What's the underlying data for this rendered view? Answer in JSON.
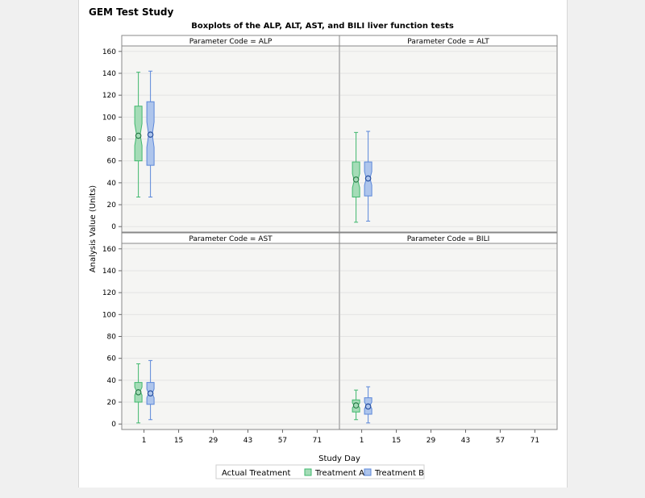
{
  "study_title": "GEM Test Study",
  "chart_data": {
    "type": "boxplot",
    "title": "Boxplots of the ALP, ALT, AST, and BILI liver function tests",
    "xlabel": "Study Day",
    "ylabel": "Analysis Value (Units)",
    "xticks": [
      1,
      15,
      29,
      43,
      57,
      71
    ],
    "xlim": [
      -8,
      80
    ],
    "yticks": [
      0,
      20,
      40,
      60,
      80,
      100,
      120,
      140,
      160
    ],
    "ylim": [
      -5,
      165
    ],
    "legend": {
      "title": "Actual Treatment",
      "position": "bottom",
      "entries": [
        "Treatment A",
        "Treatment B"
      ]
    },
    "colors": {
      "Treatment A": "#3fb76d",
      "Treatment B": "#5b87d9",
      "boxA": "#a5dcb7",
      "boxB": "#aec5ec"
    },
    "panels": [
      {
        "label": "Parameter Code = ALP",
        "boxes": [
          {
            "group": "Treatment A",
            "day": 1,
            "min": 27,
            "q1": 60,
            "median": 84,
            "q3": 110,
            "max": 141,
            "mean": 83
          },
          {
            "group": "Treatment B",
            "day": 1,
            "min": 27,
            "q1": 56,
            "median": 84,
            "q3": 114,
            "max": 142,
            "mean": 84
          }
        ]
      },
      {
        "label": "Parameter Code = ALT",
        "boxes": [
          {
            "group": "Treatment A",
            "day": 1,
            "min": 4,
            "q1": 27,
            "median": 42,
            "q3": 59,
            "max": 86,
            "mean": 43
          },
          {
            "group": "Treatment B",
            "day": 1,
            "min": 5,
            "q1": 28,
            "median": 44,
            "q3": 59,
            "max": 87,
            "mean": 44
          }
        ]
      },
      {
        "label": "Parameter Code = AST",
        "boxes": [
          {
            "group": "Treatment A",
            "day": 1,
            "min": 1,
            "q1": 20,
            "median": 30,
            "q3": 38,
            "max": 55,
            "mean": 29
          },
          {
            "group": "Treatment B",
            "day": 1,
            "min": 4,
            "q1": 18,
            "median": 28,
            "q3": 38,
            "max": 58,
            "mean": 28
          }
        ]
      },
      {
        "label": "Parameter Code = BILI",
        "boxes": [
          {
            "group": "Treatment A",
            "day": 1,
            "min": 4,
            "q1": 11,
            "median": 17,
            "q3": 22,
            "max": 31,
            "mean": 17
          },
          {
            "group": "Treatment B",
            "day": 1,
            "min": 1,
            "q1": 9,
            "median": 17,
            "q3": 24,
            "max": 34,
            "mean": 16
          }
        ]
      }
    ]
  }
}
